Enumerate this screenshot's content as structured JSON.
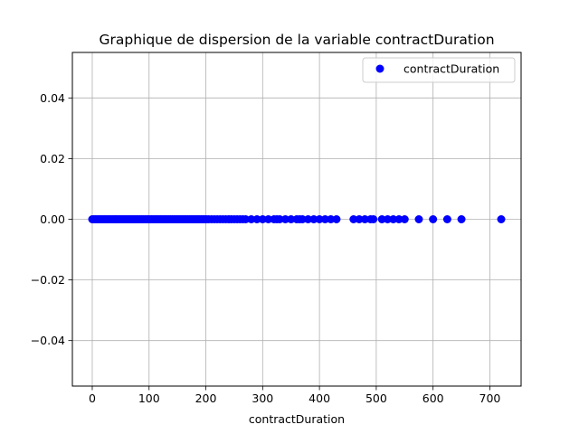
{
  "chart_data": {
    "type": "scatter",
    "title": "Graphique de dispersion de la variable contractDuration",
    "xlabel": "contractDuration",
    "ylabel": "",
    "xlim": [
      -35,
      755
    ],
    "ylim": [
      -0.055,
      0.055
    ],
    "x_ticks": [
      0,
      100,
      200,
      300,
      400,
      500,
      600,
      700
    ],
    "x_tick_labels": [
      "0",
      "100",
      "200",
      "300",
      "400",
      "500",
      "600",
      "700"
    ],
    "y_ticks": [
      0.04,
      0.02,
      0.0,
      -0.02,
      -0.04
    ],
    "y_tick_labels": [
      "0.04",
      "0.02",
      "0.00",
      "−0.02",
      "−0.04"
    ],
    "grid": true,
    "legend_position": "top-right",
    "series": [
      {
        "name": "contractDuration",
        "color": "#0000ff",
        "marker": "circle",
        "points": [
          {
            "x": 0,
            "y": 0
          },
          {
            "x": 3,
            "y": 0
          },
          {
            "x": 6,
            "y": 0
          },
          {
            "x": 9,
            "y": 0
          },
          {
            "x": 12,
            "y": 0
          },
          {
            "x": 15,
            "y": 0
          },
          {
            "x": 18,
            "y": 0
          },
          {
            "x": 21,
            "y": 0
          },
          {
            "x": 24,
            "y": 0
          },
          {
            "x": 27,
            "y": 0
          },
          {
            "x": 30,
            "y": 0
          },
          {
            "x": 33,
            "y": 0
          },
          {
            "x": 36,
            "y": 0
          },
          {
            "x": 39,
            "y": 0
          },
          {
            "x": 42,
            "y": 0
          },
          {
            "x": 45,
            "y": 0
          },
          {
            "x": 48,
            "y": 0
          },
          {
            "x": 51,
            "y": 0
          },
          {
            "x": 54,
            "y": 0
          },
          {
            "x": 57,
            "y": 0
          },
          {
            "x": 60,
            "y": 0
          },
          {
            "x": 63,
            "y": 0
          },
          {
            "x": 66,
            "y": 0
          },
          {
            "x": 69,
            "y": 0
          },
          {
            "x": 72,
            "y": 0
          },
          {
            "x": 75,
            "y": 0
          },
          {
            "x": 78,
            "y": 0
          },
          {
            "x": 81,
            "y": 0
          },
          {
            "x": 84,
            "y": 0
          },
          {
            "x": 87,
            "y": 0
          },
          {
            "x": 90,
            "y": 0
          },
          {
            "x": 93,
            "y": 0
          },
          {
            "x": 96,
            "y": 0
          },
          {
            "x": 99,
            "y": 0
          },
          {
            "x": 102,
            "y": 0
          },
          {
            "x": 105,
            "y": 0
          },
          {
            "x": 108,
            "y": 0
          },
          {
            "x": 111,
            "y": 0
          },
          {
            "x": 114,
            "y": 0
          },
          {
            "x": 117,
            "y": 0
          },
          {
            "x": 120,
            "y": 0
          },
          {
            "x": 123,
            "y": 0
          },
          {
            "x": 126,
            "y": 0
          },
          {
            "x": 129,
            "y": 0
          },
          {
            "x": 132,
            "y": 0
          },
          {
            "x": 135,
            "y": 0
          },
          {
            "x": 138,
            "y": 0
          },
          {
            "x": 141,
            "y": 0
          },
          {
            "x": 144,
            "y": 0
          },
          {
            "x": 147,
            "y": 0
          },
          {
            "x": 150,
            "y": 0
          },
          {
            "x": 153,
            "y": 0
          },
          {
            "x": 156,
            "y": 0
          },
          {
            "x": 159,
            "y": 0
          },
          {
            "x": 162,
            "y": 0
          },
          {
            "x": 165,
            "y": 0
          },
          {
            "x": 168,
            "y": 0
          },
          {
            "x": 171,
            "y": 0
          },
          {
            "x": 174,
            "y": 0
          },
          {
            "x": 177,
            "y": 0
          },
          {
            "x": 180,
            "y": 0
          },
          {
            "x": 183,
            "y": 0
          },
          {
            "x": 186,
            "y": 0
          },
          {
            "x": 189,
            "y": 0
          },
          {
            "x": 192,
            "y": 0
          },
          {
            "x": 195,
            "y": 0
          },
          {
            "x": 198,
            "y": 0
          },
          {
            "x": 201,
            "y": 0
          },
          {
            "x": 205,
            "y": 0
          },
          {
            "x": 210,
            "y": 0
          },
          {
            "x": 215,
            "y": 0
          },
          {
            "x": 220,
            "y": 0
          },
          {
            "x": 225,
            "y": 0
          },
          {
            "x": 230,
            "y": 0
          },
          {
            "x": 235,
            "y": 0
          },
          {
            "x": 240,
            "y": 0
          },
          {
            "x": 245,
            "y": 0
          },
          {
            "x": 250,
            "y": 0
          },
          {
            "x": 255,
            "y": 0
          },
          {
            "x": 260,
            "y": 0
          },
          {
            "x": 265,
            "y": 0
          },
          {
            "x": 270,
            "y": 0
          },
          {
            "x": 280,
            "y": 0
          },
          {
            "x": 290,
            "y": 0
          },
          {
            "x": 300,
            "y": 0
          },
          {
            "x": 310,
            "y": 0
          },
          {
            "x": 320,
            "y": 0
          },
          {
            "x": 325,
            "y": 0
          },
          {
            "x": 330,
            "y": 0
          },
          {
            "x": 340,
            "y": 0
          },
          {
            "x": 350,
            "y": 0
          },
          {
            "x": 360,
            "y": 0
          },
          {
            "x": 365,
            "y": 0
          },
          {
            "x": 370,
            "y": 0
          },
          {
            "x": 380,
            "y": 0
          },
          {
            "x": 390,
            "y": 0
          },
          {
            "x": 400,
            "y": 0
          },
          {
            "x": 410,
            "y": 0
          },
          {
            "x": 420,
            "y": 0
          },
          {
            "x": 430,
            "y": 0
          },
          {
            "x": 460,
            "y": 0
          },
          {
            "x": 470,
            "y": 0
          },
          {
            "x": 480,
            "y": 0
          },
          {
            "x": 490,
            "y": 0
          },
          {
            "x": 495,
            "y": 0
          },
          {
            "x": 510,
            "y": 0
          },
          {
            "x": 520,
            "y": 0
          },
          {
            "x": 530,
            "y": 0
          },
          {
            "x": 540,
            "y": 0
          },
          {
            "x": 550,
            "y": 0
          },
          {
            "x": 575,
            "y": 0
          },
          {
            "x": 600,
            "y": 0
          },
          {
            "x": 625,
            "y": 0
          },
          {
            "x": 650,
            "y": 0
          },
          {
            "x": 720,
            "y": 0
          }
        ]
      }
    ]
  }
}
